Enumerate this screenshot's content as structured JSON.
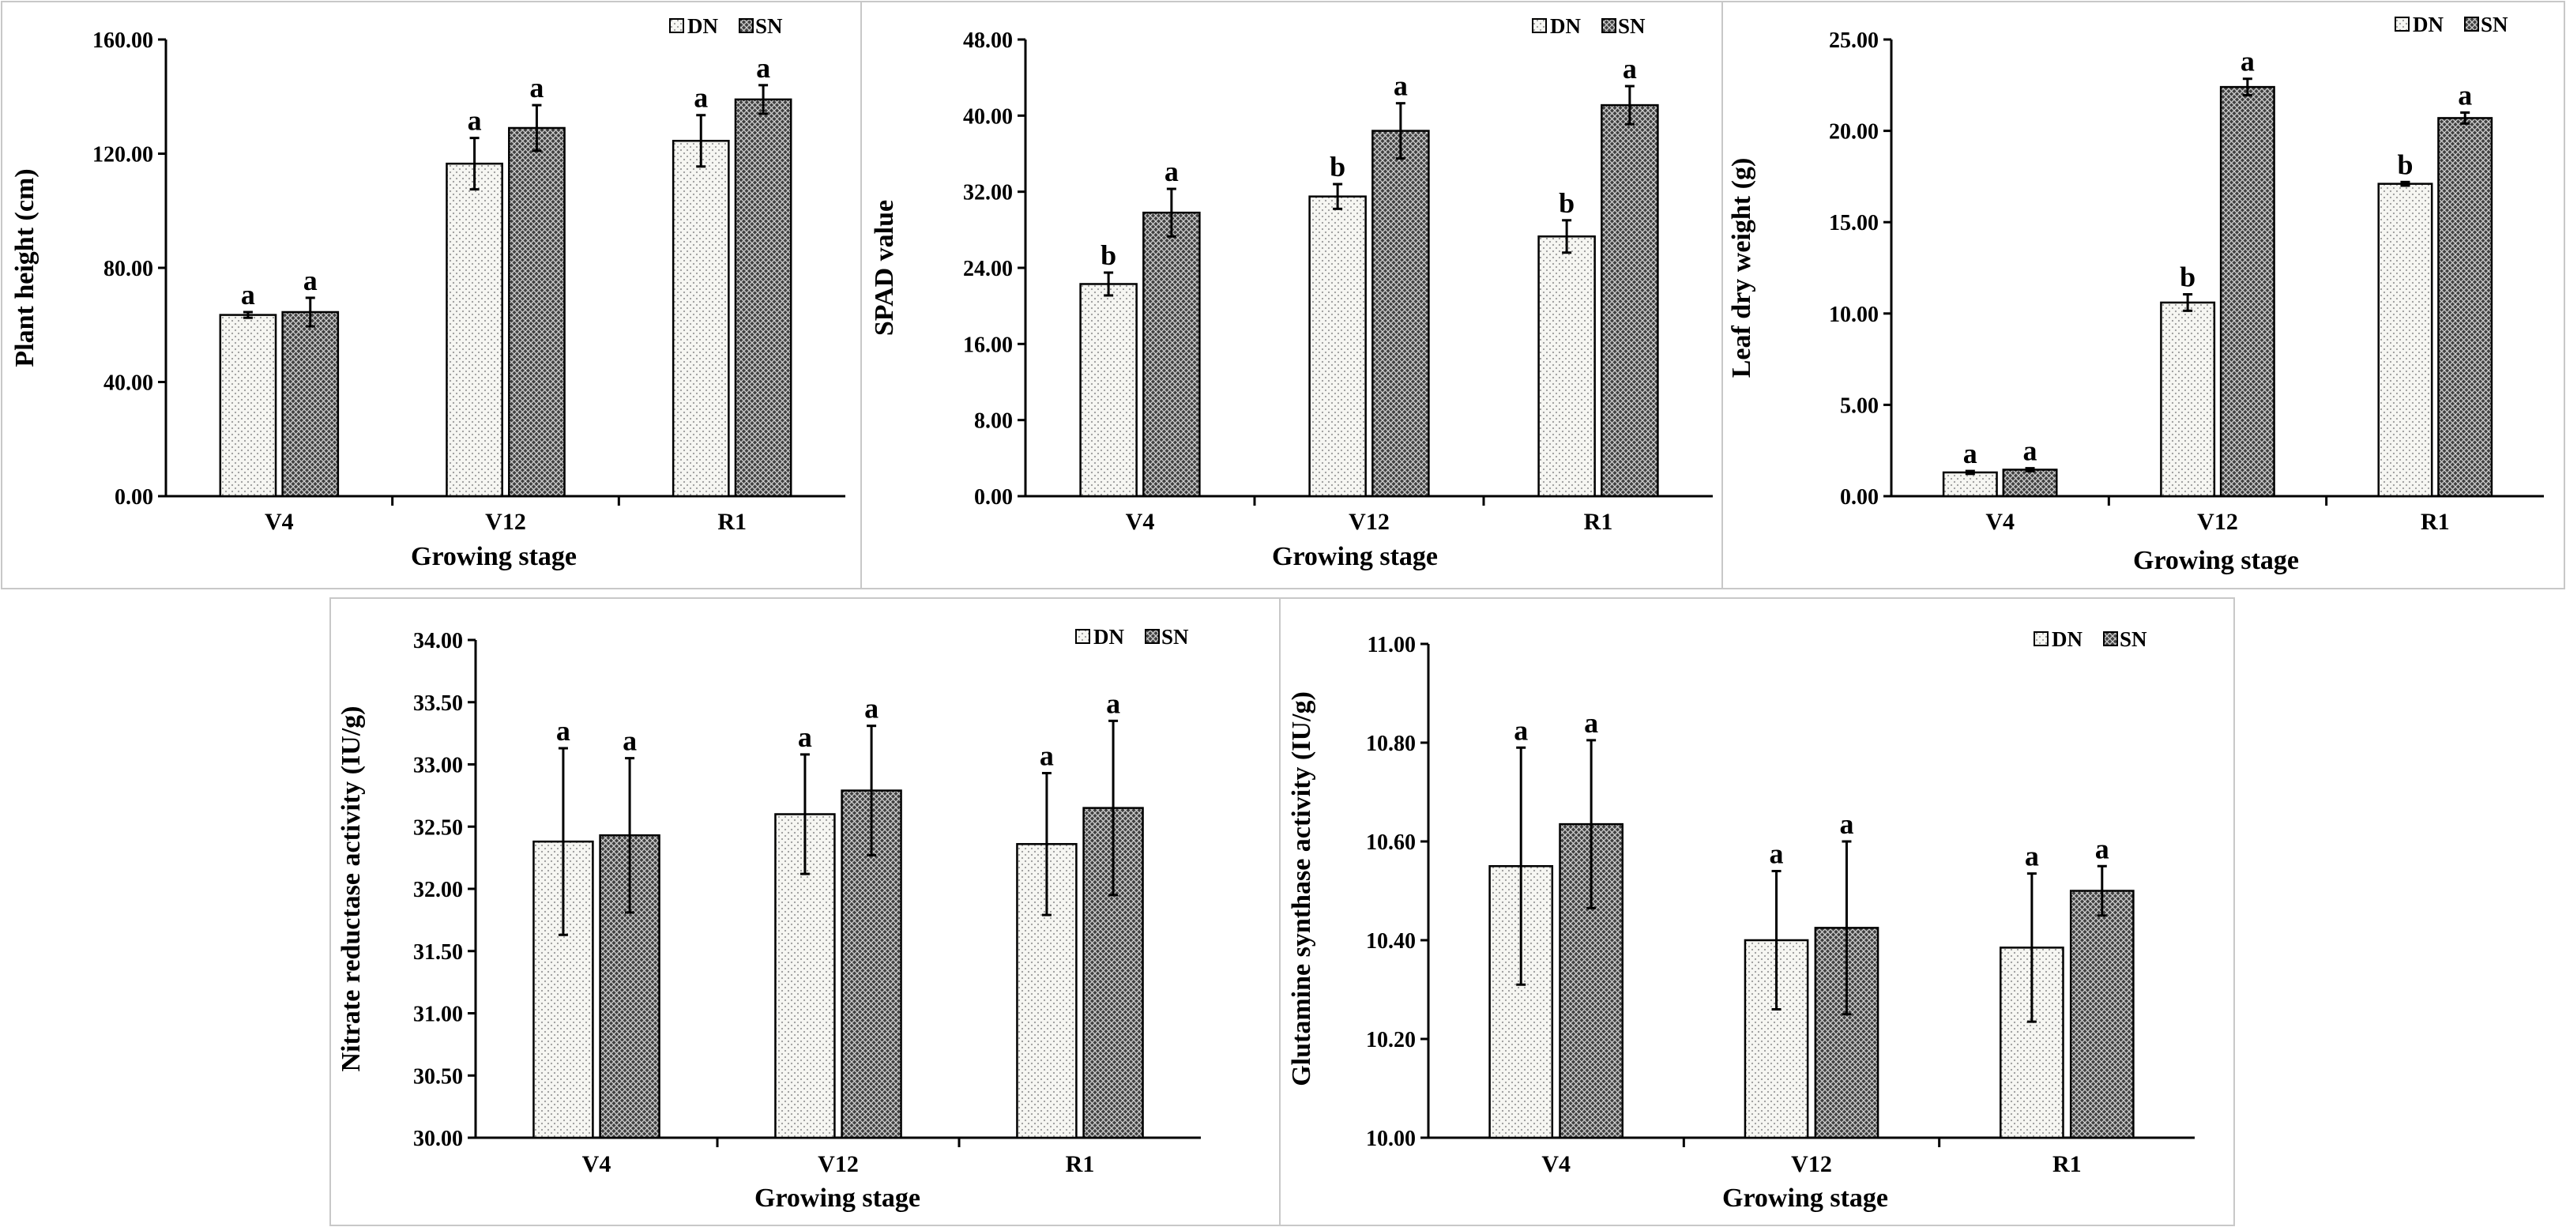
{
  "chart_data": [
    {
      "type": "bar",
      "title": "",
      "xlabel": "Growing stage",
      "ylabel": "Plant height (cm)",
      "ylim": [
        0,
        160
      ],
      "yticks": [
        "0.00",
        "40.00",
        "80.00",
        "120.00",
        "160.00"
      ],
      "categories": [
        "V4",
        "V12",
        "R1"
      ],
      "series": [
        {
          "name": "DN",
          "values": [
            63.5,
            116.5,
            124.5
          ],
          "errors": [
            1,
            9,
            9
          ],
          "letters": [
            "a",
            "a",
            "a"
          ]
        },
        {
          "name": "SN",
          "values": [
            64.5,
            129,
            139
          ],
          "errors": [
            5,
            8,
            5
          ],
          "letters": [
            "a",
            "a",
            "a"
          ]
        }
      ]
    },
    {
      "type": "bar",
      "title": "",
      "xlabel": "Growing stage",
      "ylabel": "SPAD value",
      "ylim": [
        0,
        48
      ],
      "yticks": [
        "0.00",
        "8.00",
        "16.00",
        "24.00",
        "32.00",
        "40.00",
        "48.00"
      ],
      "categories": [
        "V4",
        "V12",
        "R1"
      ],
      "series": [
        {
          "name": "DN",
          "values": [
            22.3,
            31.5,
            27.3
          ],
          "errors": [
            1.2,
            1.3,
            1.7
          ],
          "letters": [
            "b",
            "b",
            "b"
          ]
        },
        {
          "name": "SN",
          "values": [
            29.8,
            38.4,
            41.1
          ],
          "errors": [
            2.5,
            2.9,
            2.0
          ],
          "letters": [
            "a",
            "a",
            "a"
          ]
        }
      ]
    },
    {
      "type": "bar",
      "title": "",
      "xlabel": "Growing stage",
      "ylabel": "Leaf dry weight (g)",
      "ylim": [
        0,
        25
      ],
      "yticks": [
        "0.00",
        "5.00",
        "10.00",
        "15.00",
        "20.00",
        "25.00"
      ],
      "categories": [
        "V4",
        "V12",
        "R1"
      ],
      "series": [
        {
          "name": "DN",
          "values": [
            1.3,
            10.6,
            17.1
          ],
          "errors": [
            0.08,
            0.45,
            0.1
          ],
          "letters": [
            "a",
            "b",
            "b"
          ]
        },
        {
          "name": "SN",
          "values": [
            1.45,
            22.4,
            20.7
          ],
          "errors": [
            0.08,
            0.45,
            0.3
          ],
          "letters": [
            "a",
            "a",
            "a"
          ]
        }
      ]
    },
    {
      "type": "bar",
      "title": "",
      "xlabel": "Growing stage",
      "ylabel": "Nitrate reductase activity (IU/g)",
      "ylim": [
        30,
        34
      ],
      "yticks": [
        "30.00",
        "30.50",
        "31.00",
        "31.50",
        "32.00",
        "32.50",
        "33.00",
        "33.50",
        "34.00"
      ],
      "categories": [
        "V4",
        "V12",
        "R1"
      ],
      "series": [
        {
          "name": "DN",
          "values": [
            32.38,
            32.6,
            32.36
          ],
          "errors": [
            0.75,
            0.48,
            0.57
          ],
          "letters": [
            "a",
            "a",
            "a"
          ]
        },
        {
          "name": "SN",
          "values": [
            32.43,
            32.79,
            32.65
          ],
          "errors": [
            0.62,
            0.52,
            0.7
          ],
          "letters": [
            "a",
            "a",
            "a"
          ]
        }
      ]
    },
    {
      "type": "bar",
      "title": "",
      "xlabel": "Growing stage",
      "ylabel": "Glutamine synthase activity (IU/g)",
      "ylim": [
        10,
        11
      ],
      "yticks": [
        "10.00",
        "10.20",
        "10.40",
        "10.60",
        "10.80",
        "11.00"
      ],
      "categories": [
        "V4",
        "V12",
        "R1"
      ],
      "series": [
        {
          "name": "DN",
          "values": [
            10.55,
            10.4,
            10.385
          ],
          "errors": [
            0.24,
            0.14,
            0.15
          ],
          "letters": [
            "a",
            "a",
            "a"
          ]
        },
        {
          "name": "SN",
          "values": [
            10.635,
            10.425,
            10.5
          ],
          "errors": [
            0.17,
            0.175,
            0.05
          ],
          "letters": [
            "a",
            "a",
            "a"
          ]
        }
      ]
    }
  ],
  "colors": {
    "axis": "#000000",
    "dn_fill": "#f6f6f2",
    "dn_dots": "#9a9a9a",
    "sn_fill": "#404040",
    "sn_hatch": "#cfcfcf",
    "frame": "#c8c8c8"
  }
}
